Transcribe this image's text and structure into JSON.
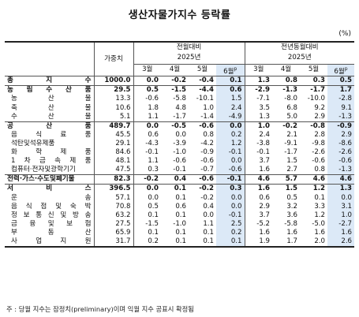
{
  "title": "생산자물가지수 등락률",
  "unit": "(%)",
  "header": {
    "weight": "가중치",
    "mom": "전월대비",
    "yoy": "전년동월대비",
    "year": "2025년",
    "months": [
      "3월",
      "4월",
      "5월",
      "6월"
    ],
    "p_mark": "p"
  },
  "rows": [
    {
      "label": "총 지 수",
      "weight": "1000.0",
      "mom": [
        "0.0",
        "-0.2",
        "-0.4",
        "0.1"
      ],
      "yoy": [
        "1.3",
        "0.8",
        "0.3",
        "0.5"
      ],
      "major": true
    },
    {
      "label": "농 림 수 산 품",
      "weight": "29.5",
      "mom": [
        "0.5",
        "-1.5",
        "-4.4",
        "0.6"
      ],
      "yoy": [
        "-2.9",
        "-1.3",
        "-1.7",
        "1.7"
      ],
      "major": true
    },
    {
      "label": "농 산 물",
      "weight": "13.3",
      "mom": [
        "-0.6",
        "-5.8",
        "-10.1",
        "1.5"
      ],
      "yoy": [
        "-7.1",
        "-8.0",
        "-10.0",
        "-2.8"
      ]
    },
    {
      "label": "축 산 물",
      "weight": "10.6",
      "mom": [
        "1.8",
        "4.8",
        "1.0",
        "2.4"
      ],
      "yoy": [
        "3.5",
        "6.8",
        "9.2",
        "9.1"
      ]
    },
    {
      "label": "수 산 물",
      "weight": "5.1",
      "mom": [
        "1.1",
        "-1.7",
        "-1.4",
        "-4.9"
      ],
      "yoy": [
        "1.3",
        "5.0",
        "2.9",
        "-1.3"
      ]
    },
    {
      "label": "공 산 품",
      "weight": "489.7",
      "mom": [
        "0.0",
        "-0.5",
        "-0.6",
        "0.0"
      ],
      "yoy": [
        "1.0",
        "-0.2",
        "-0.8",
        "-0.9"
      ],
      "major": true
    },
    {
      "label": "음 식 료 품",
      "weight": "45.5",
      "mom": [
        "0.6",
        "0.0",
        "0.8",
        "0.2"
      ],
      "yoy": [
        "2.4",
        "2.1",
        "2.8",
        "2.9"
      ]
    },
    {
      "label": "석탄및석유제품",
      "weight": "29.1",
      "mom": [
        "-4.3",
        "-3.9",
        "-4.2",
        "1.2"
      ],
      "yoy": [
        "-3.8",
        "-9.1",
        "-9.8",
        "-8.6"
      ]
    },
    {
      "label": "화 학 제 품",
      "weight": "84.6",
      "mom": [
        "-0.1",
        "-1.0",
        "-0.9",
        "-0.1"
      ],
      "yoy": [
        "-0.1",
        "-1.7",
        "-2.6",
        "-2.6"
      ]
    },
    {
      "label": "1 차 금 속 제 품",
      "weight": "48.1",
      "mom": [
        "1.1",
        "-0.6",
        "-0.6",
        "0.0"
      ],
      "yoy": [
        "3.7",
        "1.5",
        "-0.6",
        "-0.6"
      ]
    },
    {
      "label": "컴퓨터·전자및광학기기",
      "weight": "47.5",
      "mom": [
        "0.3",
        "-0.1",
        "-0.7",
        "-0.6"
      ],
      "yoy": [
        "1.6",
        "2.7",
        "0.8",
        "-1.3"
      ]
    },
    {
      "label": "전력·가스·수도및폐기물",
      "weight": "82.3",
      "mom": [
        "-0.2",
        "0.4",
        "-0.6",
        "-0.1"
      ],
      "yoy": [
        "4.6",
        "5.7",
        "4.6",
        "4.6"
      ],
      "major": true
    },
    {
      "label": "서 비 스",
      "weight": "396.5",
      "mom": [
        "0.0",
        "0.1",
        "-0.2",
        "0.3"
      ],
      "yoy": [
        "1.6",
        "1.5",
        "1.2",
        "1.3"
      ],
      "major": true
    },
    {
      "label": "운 송",
      "weight": "57.1",
      "mom": [
        "0.0",
        "0.1",
        "-0.2",
        "0.0"
      ],
      "yoy": [
        "0.6",
        "0.5",
        "0.1",
        "0.0"
      ]
    },
    {
      "label": "음 식 점 및 숙 박",
      "weight": "70.8",
      "mom": [
        "0.5",
        "0.6",
        "0.4",
        "0.0"
      ],
      "yoy": [
        "2.9",
        "3.2",
        "3.3",
        "3.1"
      ]
    },
    {
      "label": "정 보 통 신 및 방 송",
      "weight": "63.2",
      "mom": [
        "0.1",
        "0.1",
        "0.0",
        "-0.1"
      ],
      "yoy": [
        "3.7",
        "3.6",
        "1.2",
        "1.0"
      ]
    },
    {
      "label": "금 융 및 보 험",
      "weight": "27.5",
      "mom": [
        "-1.5",
        "-1.0",
        "1.1",
        "2.5"
      ],
      "yoy": [
        "-5.2",
        "-5.8",
        "-5.0",
        "-2.7"
      ]
    },
    {
      "label": "부 동 산",
      "weight": "65.9",
      "mom": [
        "0.1",
        "0.1",
        "0.1",
        "0.2"
      ],
      "yoy": [
        "1.6",
        "1.6",
        "1.6",
        "1.6"
      ]
    },
    {
      "label": "사 업 지 원",
      "weight": "31.7",
      "mom": [
        "0.2",
        "0.1",
        "0.1",
        "0.1"
      ],
      "yoy": [
        "1.9",
        "1.7",
        "2.0",
        "2.6"
      ]
    }
  ],
  "footnote": "주 : 당월 지수는 잠정치(preliminary)이며 익월 지수 공표시 확정됨"
}
